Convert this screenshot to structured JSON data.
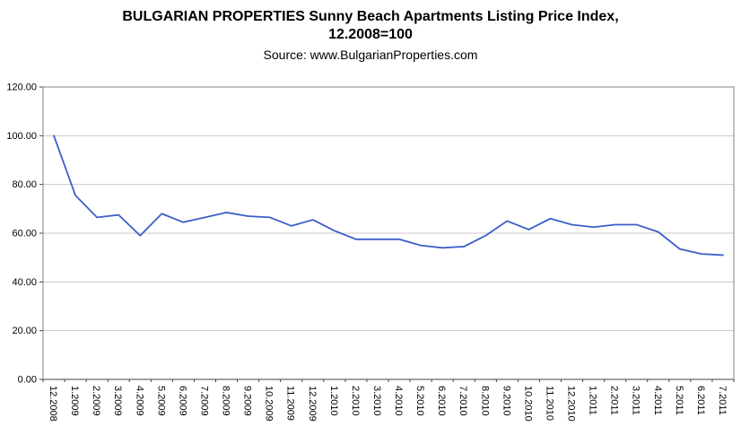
{
  "page": {
    "background": "#ffffff"
  },
  "chart_data": {
    "type": "line",
    "title": "BULGARIAN PROPERTIES Sunny Beach Apartments Listing Price Index,",
    "subtitle": "12.2008=100",
    "source": "Source: www.BulgarianProperties.com",
    "categories": [
      "12.2008",
      "1.2009",
      "2.2009",
      "3.2009",
      "4.2009",
      "5.2009",
      "6.2009",
      "7.2009",
      "8.2009",
      "9.2009",
      "10.2009",
      "11.2009",
      "12.2009",
      "1.2010",
      "2.2010",
      "3.2010",
      "4.2010",
      "5.2010",
      "6.2010",
      "7.2010",
      "8.2010",
      "9.2010",
      "10.2010",
      "11.2010",
      "12.2010",
      "1.2011",
      "2.2011",
      "3.2011",
      "4.2011",
      "5.2011",
      "6.2011",
      "7.2011"
    ],
    "values": [
      100,
      75.5,
      66.5,
      67.5,
      59,
      68,
      64.5,
      66.5,
      68.5,
      67,
      66.5,
      63,
      65.5,
      61,
      57.5,
      57.5,
      57.5,
      55,
      54,
      54.5,
      59,
      65,
      61.5,
      66,
      63.5,
      62.5,
      63.5,
      63.5,
      60.5,
      53.5,
      51.5,
      51
    ],
    "xlabel": "",
    "ylabel": "",
    "ylim": [
      0,
      120
    ],
    "y_ticks": [
      0,
      20,
      40,
      60,
      80,
      100,
      120
    ],
    "y_tick_labels": [
      "0.00",
      "20.00",
      "40.00",
      "60.00",
      "80.00",
      "100.00",
      "120.00"
    ],
    "grid": true,
    "legend": "none",
    "colors": {
      "line": "#3b5fc8",
      "grid": "#c8c8c8",
      "axis": "#404040",
      "plot_border": "#808080",
      "plot_background": "#ffffff",
      "text": "#000000"
    }
  }
}
